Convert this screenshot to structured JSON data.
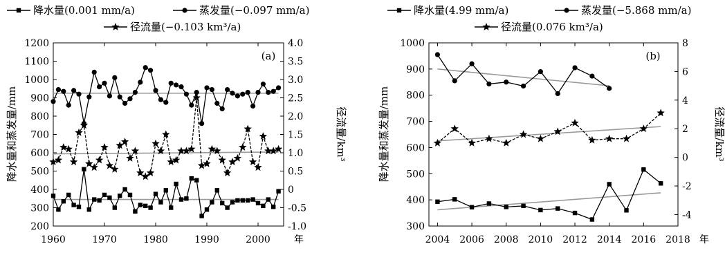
{
  "chart_data": [
    {
      "type": "line",
      "panel_label": "(a)",
      "xlabel_unit": "年",
      "ylabel_left": "降水量和蒸发量/mm",
      "ylabel_right": "径流量/km³",
      "x_ticks": [
        "1960",
        "1970",
        "1980",
        "1990",
        "2000"
      ],
      "y_left_ticks": [
        "200",
        "300",
        "400",
        "500",
        "600",
        "700",
        "800",
        "900",
        "1000",
        "1100",
        "1200"
      ],
      "y_right_ticks": [
        "-1.0",
        "-0.5",
        "0",
        "0.5",
        "1.0",
        "1.5",
        "2.0",
        "2.5",
        "3.0",
        "3.5",
        "4.0"
      ],
      "xlim": [
        1960,
        2005
      ],
      "ylim_left": [
        200,
        1200
      ],
      "ylim_right": [
        -1.0,
        4.0
      ],
      "grid": false,
      "legend": [
        "降水量(0.001 mm/a)",
        "蒸发量(−0.097 mm/a)",
        "径流量(−0.103 km³/a)"
      ],
      "series": [
        {
          "name": "降水量",
          "marker": "square",
          "axis": "left",
          "x": [
            1960,
            1961,
            1962,
            1963,
            1964,
            1965,
            1966,
            1967,
            1968,
            1969,
            1970,
            1971,
            1972,
            1973,
            1974,
            1975,
            1976,
            1977,
            1978,
            1979,
            1980,
            1981,
            1982,
            1983,
            1984,
            1985,
            1986,
            1987,
            1988,
            1989,
            1990,
            1991,
            1992,
            1993,
            1994,
            1995,
            1996,
            1997,
            1998,
            1999,
            2000,
            2001,
            2002,
            2003,
            2004
          ],
          "y": [
            365,
            290,
            335,
            370,
            315,
            305,
            510,
            290,
            345,
            340,
            370,
            355,
            300,
            365,
            400,
            370,
            280,
            315,
            310,
            300,
            375,
            330,
            395,
            300,
            430,
            345,
            350,
            460,
            450,
            255,
            290,
            330,
            395,
            325,
            300,
            330,
            340,
            340,
            340,
            345,
            325,
            310,
            345,
            305,
            390
          ],
          "trend": [
            345,
            345
          ]
        },
        {
          "name": "蒸发量",
          "marker": "circle",
          "axis": "left",
          "x": [
            1960,
            1961,
            1962,
            1963,
            1964,
            1965,
            1966,
            1967,
            1968,
            1969,
            1970,
            1971,
            1972,
            1973,
            1974,
            1975,
            1976,
            1977,
            1978,
            1979,
            1980,
            1981,
            1982,
            1983,
            1984,
            1985,
            1986,
            1987,
            1988,
            1989,
            1990,
            1991,
            1992,
            1993,
            1994,
            1995,
            1996,
            1997,
            1998,
            1999,
            2000,
            2001,
            2002,
            2003,
            2004
          ],
          "y": [
            880,
            945,
            935,
            860,
            940,
            920,
            760,
            905,
            1040,
            960,
            980,
            910,
            1010,
            905,
            870,
            895,
            930,
            985,
            1065,
            1050,
            940,
            890,
            875,
            980,
            970,
            960,
            920,
            860,
            930,
            760,
            955,
            945,
            870,
            840,
            945,
            925,
            910,
            920,
            930,
            855,
            930,
            975,
            930,
            935,
            955
          ],
          "trend": [
            925,
            925
          ]
        },
        {
          "name": "径流量",
          "marker": "star",
          "axis": "right",
          "x": [
            1960,
            1961,
            1962,
            1963,
            1964,
            1965,
            1966,
            1967,
            1968,
            1969,
            1970,
            1971,
            1972,
            1973,
            1974,
            1975,
            1976,
            1977,
            1978,
            1979,
            1980,
            1981,
            1982,
            1983,
            1984,
            1985,
            1986,
            1987,
            1988,
            1989,
            1990,
            1991,
            1992,
            1993,
            1994,
            1995,
            1996,
            1997,
            1998,
            1999,
            2000,
            2001,
            2002,
            2003,
            2004
          ],
          "y": [
            0.75,
            0.8,
            1.15,
            1.1,
            0.75,
            1.55,
            1.75,
            0.7,
            0.6,
            0.8,
            1.15,
            0.65,
            0.55,
            1.2,
            1.3,
            0.85,
            1.05,
            0.45,
            0.35,
            0.45,
            1.25,
            1.05,
            1.5,
            0.75,
            0.8,
            1.05,
            1.05,
            1.1,
            2.5,
            0.65,
            0.7,
            1.1,
            1.05,
            0.8,
            0.45,
            0.75,
            0.85,
            1.15,
            1.65,
            0.75,
            0.6,
            1.45,
            1.05,
            1.05,
            1.1
          ],
          "trend": [
            0.97,
            1.02
          ]
        }
      ]
    },
    {
      "type": "line",
      "panel_label": "(b)",
      "xlabel_unit": "年",
      "ylabel_left": "降水量和蒸发量/mm",
      "ylabel_right": "径流量/km³",
      "x_ticks": [
        "2004",
        "2006",
        "2008",
        "2010",
        "2012",
        "2014",
        "2016",
        "2018"
      ],
      "y_left_ticks": [
        "300",
        "400",
        "500",
        "600",
        "700",
        "800",
        "900",
        "1000"
      ],
      "y_right_ticks": [
        "-4",
        "-2",
        "0",
        "2",
        "4",
        "6",
        "8"
      ],
      "xlim": [
        2003.5,
        2018
      ],
      "ylim_left": [
        300,
        1000
      ],
      "ylim_right": [
        -4.8,
        8
      ],
      "grid": false,
      "legend": [
        "降水量(4.99 mm/a)",
        "蒸发量(−5.868 mm/a)",
        "径流量(0.076 km³/a)"
      ],
      "series": [
        {
          "name": "降水量",
          "marker": "square",
          "axis": "left",
          "x": [
            2004,
            2005,
            2006,
            2007,
            2008,
            2009,
            2010,
            2011,
            2012,
            2013,
            2014,
            2015,
            2016,
            2017
          ],
          "y": [
            393,
            402,
            372,
            386,
            373,
            377,
            361,
            367,
            350,
            325,
            460,
            360,
            516,
            463
          ],
          "trend": [
            362,
            427
          ]
        },
        {
          "name": "蒸发量",
          "marker": "circle",
          "axis": "left",
          "x": [
            2004,
            2005,
            2006,
            2007,
            2008,
            2009,
            2010,
            2011,
            2012,
            2013,
            2014
          ],
          "y": [
            955,
            855,
            920,
            843,
            850,
            835,
            890,
            806,
            905,
            873,
            826
          ],
          "trend": [
            900,
            836
          ]
        },
        {
          "name": "径流量",
          "marker": "star",
          "axis": "right",
          "x": [
            2004,
            2005,
            2006,
            2007,
            2008,
            2009,
            2010,
            2011,
            2012,
            2013,
            2014,
            2015,
            2016,
            2017
          ],
          "y": [
            1.0,
            2.0,
            1.0,
            1.3,
            1.0,
            1.6,
            1.3,
            1.8,
            2.4,
            1.2,
            1.3,
            1.3,
            2.0,
            3.1
          ],
          "trend": [
            1.15,
            2.15
          ]
        }
      ]
    }
  ]
}
